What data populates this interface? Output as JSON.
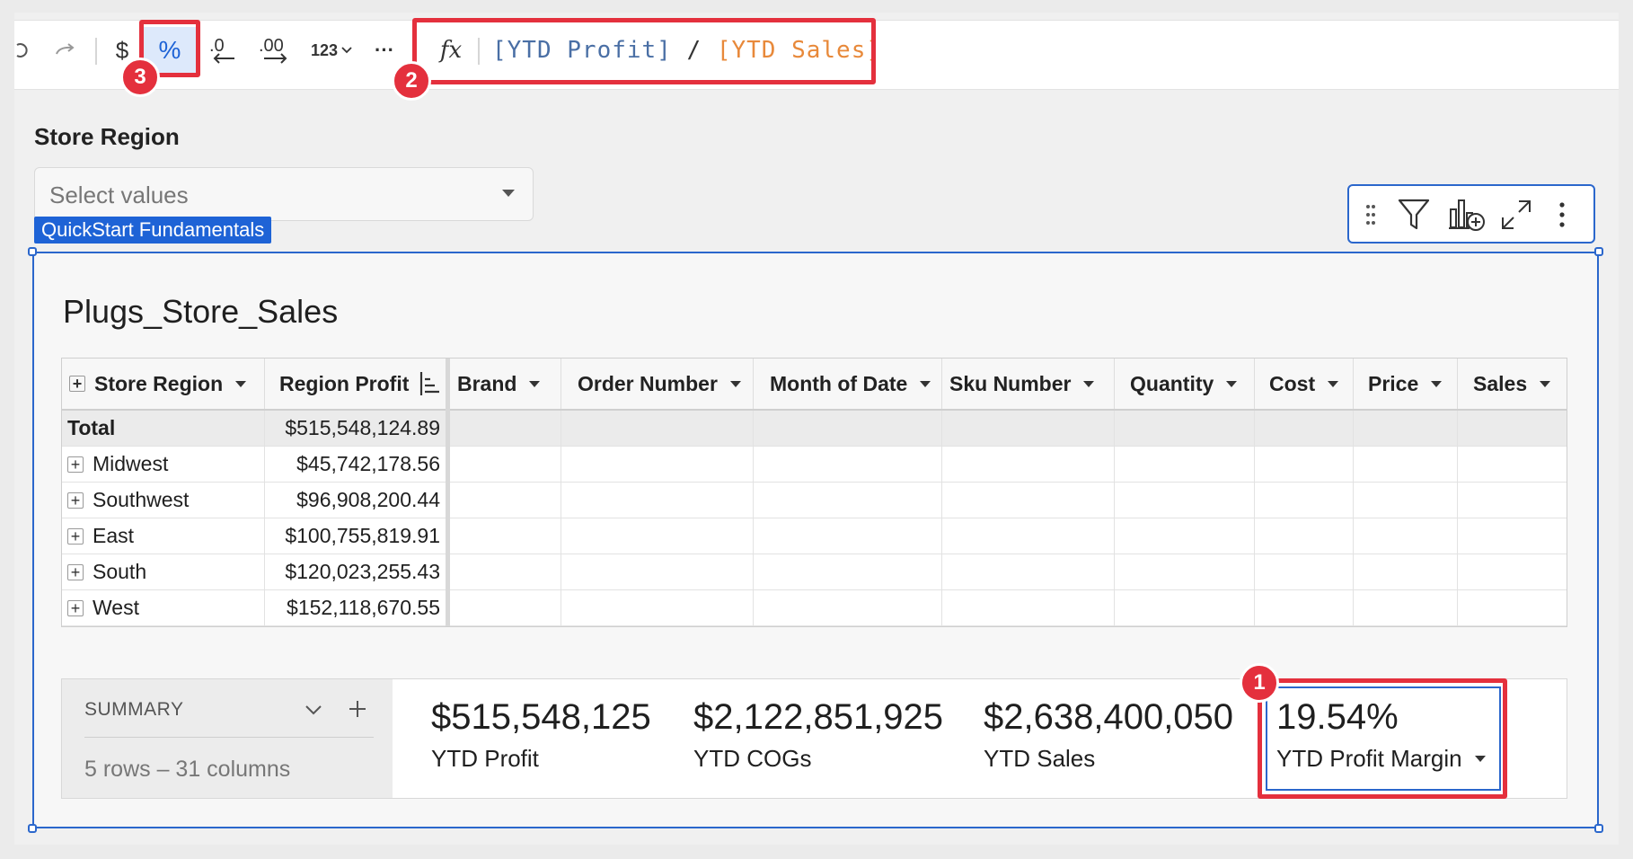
{
  "toolbar": {
    "redo_icon": "redo-icon",
    "currency_label": "$",
    "percent_label": "%",
    "decrease_decimals_label": ".0",
    "increase_decimals_label": ".00",
    "number_format_label": "123",
    "more_label": "···",
    "fx_label": "fx",
    "formula": {
      "part1": "[YTD Profit]",
      "op": " / ",
      "part2": "[YTD Sales]"
    }
  },
  "badges": {
    "b1": "1",
    "b2": "2",
    "b3": "3"
  },
  "control": {
    "title": "Store Region",
    "placeholder": "Select values",
    "tag": "QuickStart Fundamentals"
  },
  "element": {
    "title": "Plugs_Store_Sales"
  },
  "table": {
    "columns": [
      "Store Region",
      "Region Profit",
      "Brand",
      "Order Number",
      "Month of Date",
      "Sku Number",
      "Quantity",
      "Cost",
      "Price",
      "Sales"
    ],
    "total": {
      "label": "Total",
      "value": "$515,548,124.89"
    },
    "rows": [
      {
        "region": "Midwest",
        "profit": "$45,742,178.56"
      },
      {
        "region": "Southwest",
        "profit": "$96,908,200.44"
      },
      {
        "region": "East",
        "profit": "$100,755,819.91"
      },
      {
        "region": "South",
        "profit": "$120,023,255.43"
      },
      {
        "region": "West",
        "profit": "$152,118,670.55"
      }
    ]
  },
  "summary": {
    "label": "SUMMARY",
    "rows_info": "5 rows – 31 columns",
    "kpis": [
      {
        "value": "$515,548,125",
        "label": "YTD Profit"
      },
      {
        "value": "$2,122,851,925",
        "label": "YTD COGs"
      },
      {
        "value": "$2,638,400,050",
        "label": "YTD Sales"
      },
      {
        "value": "19.54%",
        "label": "YTD Profit Margin"
      }
    ]
  },
  "colors": {
    "accent": "#1e63d6",
    "annotation_red": "#e4303d",
    "formula_part1": "#4a6fa5",
    "formula_part2": "#e8893a"
  }
}
